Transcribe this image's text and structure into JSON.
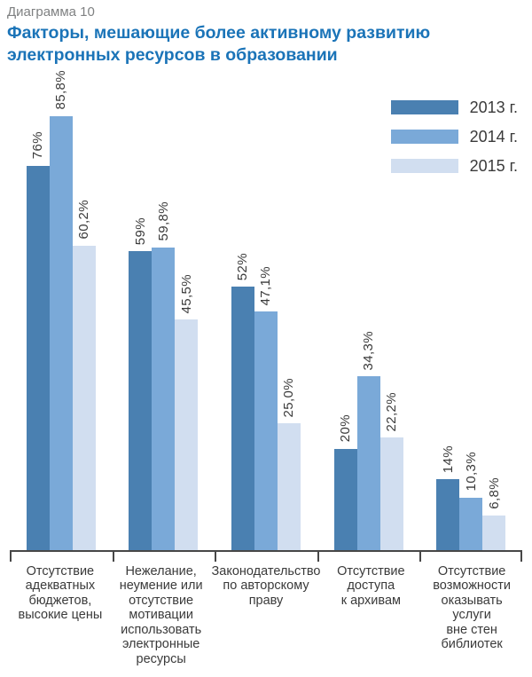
{
  "header": {
    "doc_label": "Диаграмма 10",
    "title": "Факторы, мешающие более активному развитию\nэлектронных ресурсов в образовании"
  },
  "chart_data": {
    "type": "bar",
    "title": "Факторы, мешающие более активному развитию электронных ресурсов в образовании",
    "categories": [
      "Отсутствие\nадекватных\nбюджетов,\nвысокие цены",
      "Нежелание,\nнеумение или\nотсутствие\nмотивации\nиспользовать\nэлектронные\nресурсы",
      "Законодательство\nпо авторскому\nправу",
      "Отсутствие\nдоступа\nк архивам",
      "Отсутствие\nвозможности\nоказывать услуги\nвне стен\nбиблиотек"
    ],
    "series": [
      {
        "name": "2013 г.",
        "color": "#4a80b1",
        "values": [
          76,
          59,
          52,
          20,
          14
        ],
        "value_labels": [
          "76%",
          "59%",
          "52%",
          "20%",
          "14%"
        ]
      },
      {
        "name": "2014 г.",
        "color": "#7aa9d8",
        "values": [
          85.8,
          59.8,
          47.1,
          34.3,
          10.3
        ],
        "value_labels": [
          "85,8%",
          "59,8%",
          "47,1%",
          "34,3%",
          "10,3%"
        ]
      },
      {
        "name": "2015 г.",
        "color": "#d1def0",
        "values": [
          60.2,
          45.5,
          25.0,
          22.2,
          6.8
        ],
        "value_labels": [
          "60,2%",
          "45,5%",
          "25,0%",
          "22,2%",
          "6,8%"
        ]
      }
    ],
    "xlabel": "",
    "ylabel": "",
    "ylim": [
      0,
      100
    ],
    "grid": false,
    "legend_position": "top-right",
    "value_label_rotation": 90
  },
  "colors": {
    "title": "#1b74b8",
    "doc_label": "#7f8182",
    "text": "#3a3a3a",
    "axis": "#474747"
  }
}
